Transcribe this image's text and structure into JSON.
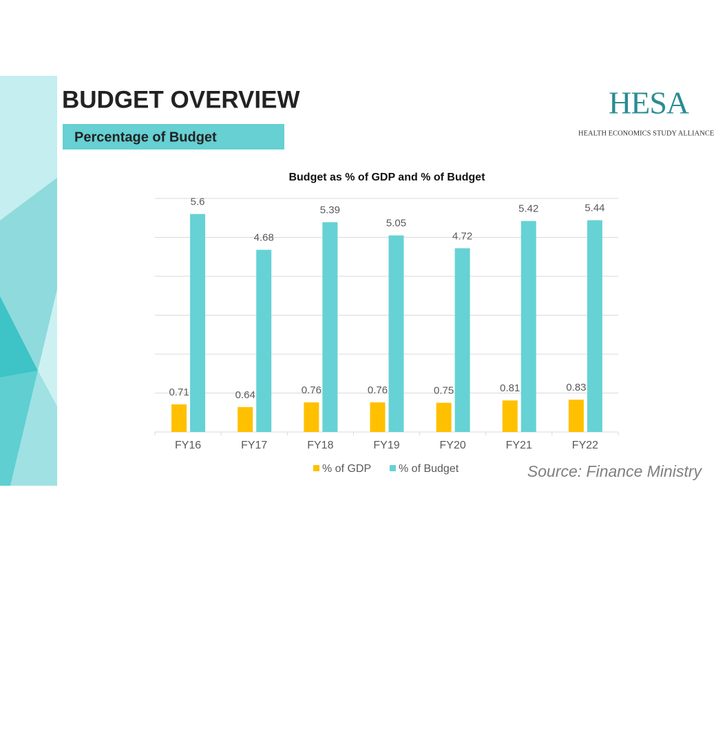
{
  "slide": {
    "title": "BUDGET OVERVIEW",
    "subtitle": "Percentage of Budget",
    "logo": "HESA",
    "logo_caption": "HEALTH ECONOMICS STUDY ALLIANCE",
    "source": "Source: Finance Ministry"
  },
  "chart_data": {
    "type": "bar",
    "title": "Budget as % of GDP and % of Budget",
    "categories": [
      "FY16",
      "FY17",
      "FY18",
      "FY19",
      "FY20",
      "FY21",
      "FY22"
    ],
    "series": [
      {
        "name": "% of GDP",
        "color": "#ffc000",
        "values": [
          0.71,
          0.64,
          0.76,
          0.76,
          0.75,
          0.81,
          0.83
        ]
      },
      {
        "name": "% of Budget",
        "color": "#66d2d5",
        "values": [
          5.6,
          4.68,
          5.39,
          5.05,
          4.72,
          5.42,
          5.44
        ]
      }
    ],
    "ylim": [
      0,
      6
    ],
    "yticks": [
      0,
      1,
      2,
      3,
      4,
      5,
      6
    ],
    "grid": true,
    "legend": "bottom"
  }
}
